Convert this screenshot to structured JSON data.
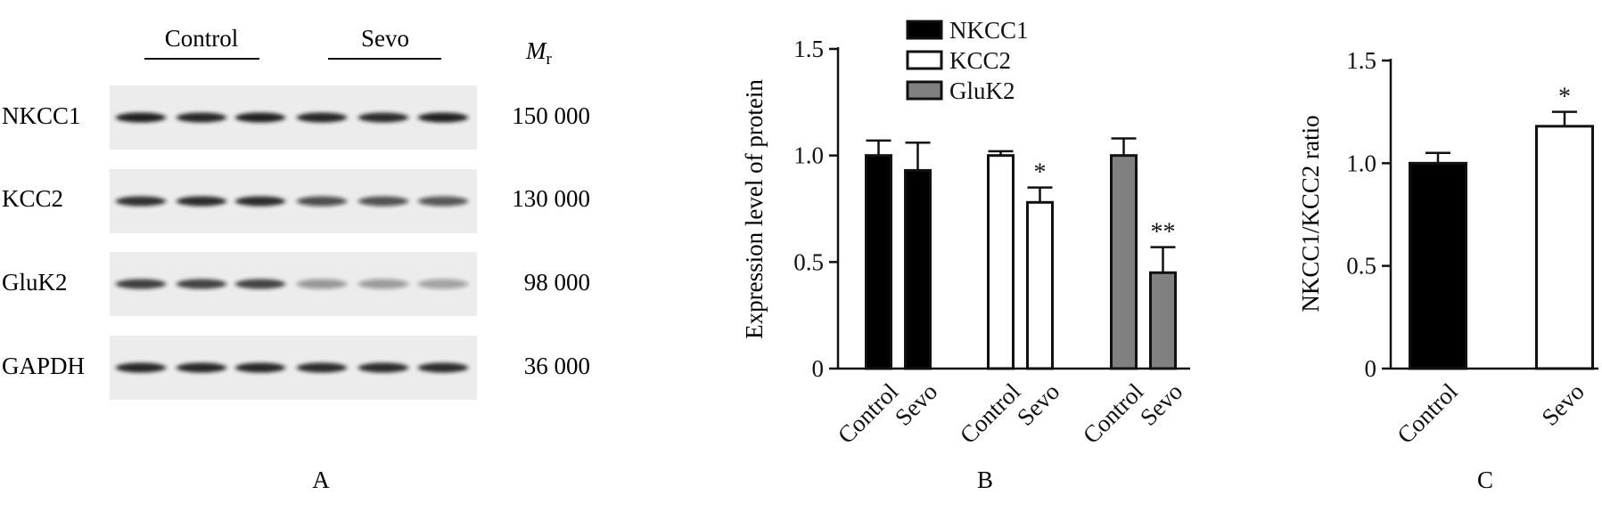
{
  "panel_labels": {
    "a": "A",
    "b": "B",
    "c": "C"
  },
  "western_blot": {
    "group_labels": [
      "Control",
      "Sevo"
    ],
    "mr_label": "M",
    "mr_subscript": "r",
    "rows": [
      {
        "protein": "NKCC1",
        "mass": "150 000",
        "intensities": [
          0.95,
          0.92,
          0.95,
          0.92,
          0.9,
          0.95
        ]
      },
      {
        "protein": "KCC2",
        "mass": "130 000",
        "intensities": [
          0.88,
          0.9,
          0.9,
          0.72,
          0.7,
          0.68
        ]
      },
      {
        "protein": "GluK2",
        "mass": "98 000",
        "intensities": [
          0.82,
          0.8,
          0.8,
          0.4,
          0.38,
          0.35
        ]
      },
      {
        "protein": "GAPDH",
        "mass": "36 000",
        "intensities": [
          0.92,
          0.92,
          0.92,
          0.9,
          0.9,
          0.9
        ]
      }
    ]
  },
  "chart_data": [
    {
      "type": "bar",
      "title": "",
      "xlabel": "",
      "ylabel": "Expression level of  protein",
      "ylim": [
        0,
        1.5
      ],
      "yticks": [
        "0",
        "0.5",
        "1.0",
        "1.5"
      ],
      "legend_position": "top-left",
      "legend": [
        {
          "name": "NKCC1",
          "fill": "#000000"
        },
        {
          "name": "KCC2",
          "fill": "#ffffff"
        },
        {
          "name": "GluK2",
          "fill": "#808080"
        }
      ],
      "groups": [
        {
          "name": "NKCC1",
          "categories": [
            "Control",
            "Sevo"
          ],
          "values": [
            1.0,
            0.93
          ],
          "errors": [
            0.07,
            0.13
          ],
          "significance": [
            "",
            ""
          ]
        },
        {
          "name": "KCC2",
          "categories": [
            "Control",
            "Sevo"
          ],
          "values": [
            1.0,
            0.78
          ],
          "errors": [
            0.02,
            0.07
          ],
          "significance": [
            "",
            "*"
          ]
        },
        {
          "name": "GluK2",
          "categories": [
            "Control",
            "Sevo"
          ],
          "values": [
            1.0,
            0.45
          ],
          "errors": [
            0.08,
            0.12
          ],
          "significance": [
            "",
            "**"
          ]
        }
      ]
    },
    {
      "type": "bar",
      "title": "",
      "xlabel": "",
      "ylabel": "NKCC1/KCC2 ratio",
      "ylim": [
        0,
        1.5
      ],
      "yticks": [
        "0",
        "0.5",
        "1.0",
        "1.5"
      ],
      "categories": [
        "Control",
        "Sevo"
      ],
      "values": [
        1.0,
        1.18
      ],
      "errors": [
        0.05,
        0.07
      ],
      "fills": [
        "#000000",
        "#ffffff"
      ],
      "significance": [
        "",
        "*"
      ]
    }
  ],
  "colors": {
    "ink": "#111111",
    "bar_black": "#000000",
    "bar_white": "#ffffff",
    "bar_gray": "#808080",
    "blot_background": "#ececec",
    "band": "#151515"
  }
}
